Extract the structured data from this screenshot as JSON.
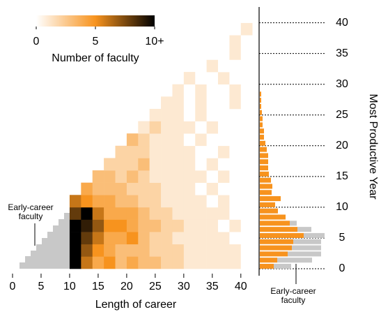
{
  "chart_data": {
    "type": "heatmap",
    "xlabel": "Length of career",
    "ylabel": "Most Productive Year",
    "xlim": [
      0,
      43.2
    ],
    "ylim": [
      0,
      42
    ],
    "xticks": [
      0,
      5,
      10,
      15,
      20,
      25,
      30,
      35,
      40
    ],
    "yticks": [
      0,
      5,
      10,
      15,
      20,
      25,
      30,
      35,
      40
    ],
    "bin_width": 2,
    "x_bins": [
      10,
      12,
      14,
      16,
      18,
      20,
      22,
      24,
      26,
      28,
      30,
      32,
      34,
      36,
      38,
      40
    ],
    "y_bins": [
      0,
      2,
      4,
      6,
      8,
      10,
      12,
      14,
      16,
      18,
      20,
      22,
      24,
      26,
      28,
      30,
      32,
      34,
      36,
      38,
      40
    ],
    "cells": [
      [
        10,
        6,
        4,
        5,
        3,
        4,
        3,
        3,
        2,
        2,
        1,
        1,
        1,
        1,
        1,
        0
      ],
      [
        10,
        7,
        5,
        4,
        3,
        3,
        3,
        2,
        2,
        2,
        1,
        1,
        1,
        1,
        1,
        0
      ],
      [
        10,
        8,
        6,
        4,
        4,
        5,
        3,
        2,
        2,
        1,
        1,
        1,
        1,
        1,
        0,
        0
      ],
      [
        10,
        9,
        7,
        5,
        5,
        4,
        3,
        3,
        2,
        2,
        1,
        1,
        1,
        0,
        1,
        0
      ],
      [
        8,
        10,
        6,
        4,
        4,
        4,
        3,
        2,
        2,
        1,
        1,
        1,
        1,
        1,
        0,
        0
      ],
      [
        6,
        5,
        4,
        4,
        3,
        3,
        2,
        2,
        1,
        1,
        1,
        1,
        0,
        1,
        0,
        0
      ],
      [
        null,
        4,
        3,
        3,
        3,
        2,
        2,
        2,
        1,
        1,
        1,
        0,
        1,
        0,
        0,
        0
      ],
      [
        null,
        null,
        3,
        3,
        2,
        3,
        2,
        1,
        1,
        1,
        1,
        1,
        0,
        1,
        0,
        0
      ],
      [
        null,
        null,
        null,
        2,
        2,
        2,
        3,
        1,
        1,
        1,
        1,
        0,
        1,
        0,
        0,
        0
      ],
      [
        null,
        null,
        null,
        null,
        2,
        2,
        2,
        1,
        1,
        1,
        1,
        0,
        0,
        1,
        0,
        0
      ],
      [
        null,
        null,
        null,
        null,
        null,
        3,
        2,
        1,
        1,
        1,
        0,
        1,
        0,
        0,
        0,
        0
      ],
      [
        null,
        null,
        null,
        null,
        null,
        null,
        1,
        2,
        1,
        1,
        1,
        0,
        1,
        0,
        0,
        0
      ],
      [
        null,
        null,
        null,
        null,
        null,
        null,
        null,
        1,
        1,
        1,
        0,
        1,
        0,
        0,
        0,
        0
      ],
      [
        null,
        null,
        null,
        null,
        null,
        null,
        null,
        null,
        1,
        1,
        0,
        1,
        0,
        0,
        1,
        0
      ],
      [
        null,
        null,
        null,
        null,
        null,
        null,
        null,
        null,
        null,
        1,
        0,
        1,
        0,
        0,
        1,
        0
      ],
      [
        null,
        null,
        null,
        null,
        null,
        null,
        null,
        null,
        null,
        null,
        1,
        0,
        0,
        1,
        0,
        0
      ],
      [
        null,
        null,
        null,
        null,
        null,
        null,
        null,
        null,
        null,
        null,
        null,
        0,
        1,
        0,
        0,
        0
      ],
      [
        null,
        null,
        null,
        null,
        null,
        null,
        null,
        null,
        null,
        null,
        null,
        null,
        0,
        0,
        1,
        0
      ],
      [
        null,
        null,
        null,
        null,
        null,
        null,
        null,
        null,
        null,
        null,
        null,
        null,
        null,
        0,
        1,
        0
      ],
      [
        null,
        null,
        null,
        null,
        null,
        null,
        null,
        null,
        null,
        null,
        null,
        null,
        null,
        null,
        0,
        1
      ],
      [
        null,
        null,
        null,
        null,
        null,
        null,
        null,
        null,
        null,
        null,
        null,
        null,
        null,
        null,
        null,
        0
      ]
    ],
    "colormap": [
      "#ffffff",
      "#f7931e",
      "#000000"
    ],
    "colorbar": {
      "label": "Number of faculty",
      "lim": [
        0,
        10
      ],
      "ticks": [
        0,
        5,
        {
          "value": 10,
          "label": "10+"
        }
      ]
    },
    "early_career_color": "#c8c8c8",
    "annotation_left": [
      "Early-career",
      "faculty"
    ],
    "annotation_right": [
      "Early-career",
      "faculty"
    ],
    "marginal": {
      "xlim": [
        0,
        100
      ],
      "series": [
        {
          "color": "#f7931e",
          "values": [
            20,
            25,
            40,
            46,
            48,
            63,
            54,
            43,
            37,
            26,
            22,
            30,
            17,
            18,
            16,
            13,
            12,
            12,
            12,
            10,
            8,
            6,
            6,
            4,
            4,
            3,
            2,
            2,
            2
          ]
        },
        {
          "color": "#c8c8c8",
          "values": [
            25,
            50,
            48,
            42,
            40,
            30,
            20,
            10
          ]
        }
      ]
    }
  }
}
